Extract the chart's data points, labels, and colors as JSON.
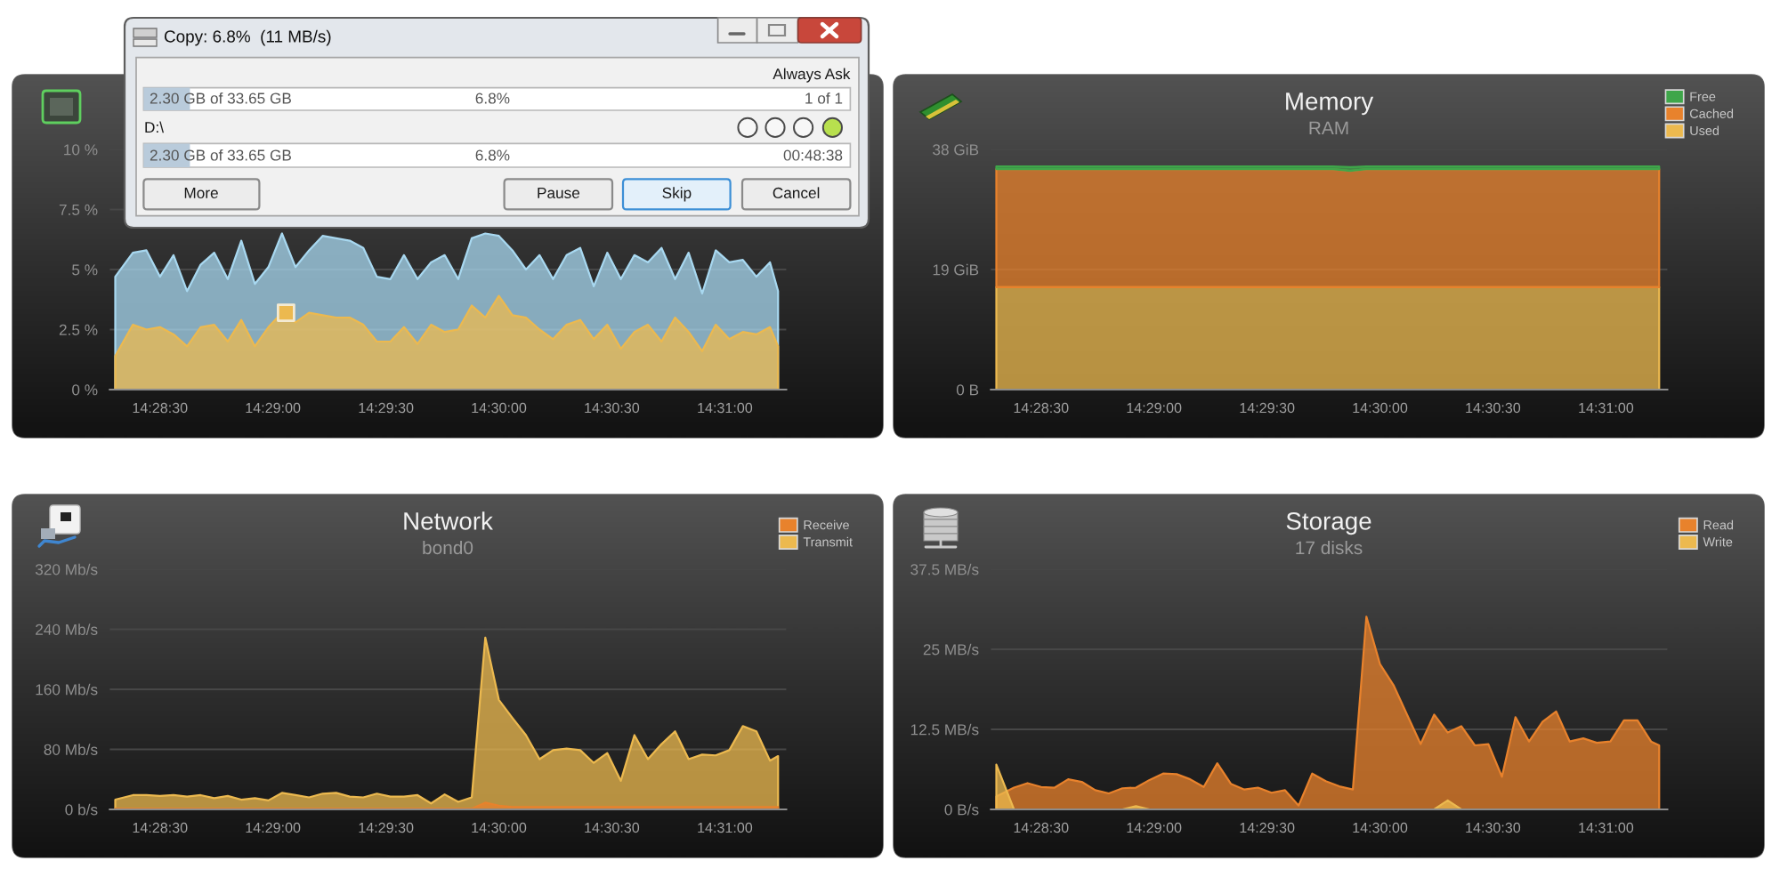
{
  "chart_data": [
    {
      "type": "other",
      "title": "Copy: 6.8%  (11 MB/s)",
      "annotations": [
        "Always Ask",
        "2.30 GB of 33.65 GB",
        "6.8%",
        "1 of 1",
        "D:\\",
        "2.30 GB of 33.65 GB",
        "6.8%",
        "00:48:38",
        "More",
        "Pause",
        "Skip",
        "Cancel"
      ]
    },
    {
      "type": "area",
      "x": [
        14.4717,
        14.473,
        14.474,
        14.475,
        14.476,
        14.477,
        14.478,
        14.479,
        14.48,
        14.481,
        14.482,
        14.483,
        14.484,
        14.485,
        14.486,
        14.487,
        14.488,
        14.489,
        14.49,
        14.491,
        14.492,
        14.493,
        14.494,
        14.495,
        14.496,
        14.497,
        14.498,
        14.499,
        14.5,
        14.501,
        14.502,
        14.503,
        14.504,
        14.505,
        14.506,
        14.507,
        14.508,
        14.509,
        14.51,
        14.511,
        14.512,
        14.513,
        14.514,
        14.515,
        14.516,
        14.517,
        14.518,
        14.519,
        14.52,
        14.5206
      ],
      "xlim": [
        14.4713,
        14.5212
      ],
      "xticks": [
        {
          "value": 14.475,
          "label": "14:28:30"
        },
        {
          "value": 14.48333,
          "label": "14:29:00"
        },
        {
          "value": 14.49167,
          "label": "14:29:30"
        },
        {
          "value": 14.5,
          "label": "14:30:00"
        },
        {
          "value": 14.50833,
          "label": "14:30:30"
        },
        {
          "value": 14.51667,
          "label": "14:31:00"
        }
      ],
      "ylim": [
        0,
        10
      ],
      "yticks": [
        {
          "value": 0,
          "label": "0 %"
        },
        {
          "value": 2.5,
          "label": "2.5 %"
        },
        {
          "value": 5,
          "label": "5 %"
        },
        {
          "value": 7.5,
          "label": "7.5 %"
        },
        {
          "value": 10,
          "label": "10 %"
        }
      ],
      "grid": "y",
      "series": [
        {
          "color": "#a8d8f0",
          "values": [
            4.7,
            5.7,
            5.8,
            4.7,
            5.6,
            4.1,
            5.2,
            5.7,
            4.6,
            6.2,
            4.4,
            5.1,
            6.5,
            5.1,
            5.8,
            6.4,
            6.3,
            6.2,
            5.9,
            4.7,
            4.6,
            5.6,
            4.6,
            5.3,
            5.6,
            4.6,
            6.3,
            6.5,
            6.4,
            5.8,
            5.0,
            5.6,
            4.6,
            5.6,
            5.9,
            4.3,
            5.7,
            4.6,
            5.6,
            5.3,
            5.9,
            4.6,
            5.7,
            4.0,
            5.8,
            5.3,
            5.4,
            4.7,
            5.3,
            4.1
          ]
        },
        {
          "color": "#ecb94f",
          "values": [
            1.4,
            2.7,
            2.5,
            2.6,
            2.3,
            1.8,
            2.6,
            2.7,
            2.0,
            2.9,
            1.8,
            2.6,
            3.2,
            2.8,
            3.2,
            3.1,
            3.0,
            3.0,
            2.7,
            2.0,
            2.0,
            2.6,
            1.9,
            2.7,
            2.4,
            2.5,
            3.5,
            3.0,
            3.9,
            3.1,
            3.0,
            2.5,
            2.1,
            2.7,
            2.9,
            2.1,
            2.7,
            1.7,
            2.4,
            2.7,
            2.0,
            3.0,
            2.4,
            1.6,
            2.7,
            2.1,
            2.4,
            2.3,
            2.6,
            1.8
          ]
        },
        {
          "type": "scatter",
          "marker": "square",
          "color": "#ecb94f",
          "x": [
            14.4843
          ],
          "values": [
            3.2
          ]
        }
      ]
    },
    {
      "type": "area",
      "title": "Memory",
      "subtitle": "RAM",
      "stacked": true,
      "legend": "top right",
      "x": [
        14.4717,
        14.4965,
        14.4978,
        14.499,
        14.5206
      ],
      "xlim": [
        14.4713,
        14.5212
      ],
      "xticks": [
        {
          "value": 14.475,
          "label": "14:28:30"
        },
        {
          "value": 14.48333,
          "label": "14:29:00"
        },
        {
          "value": 14.49167,
          "label": "14:29:30"
        },
        {
          "value": 14.5,
          "label": "14:30:00"
        },
        {
          "value": 14.50833,
          "label": "14:30:30"
        },
        {
          "value": 14.51667,
          "label": "14:31:00"
        }
      ],
      "ylim": [
        0,
        38
      ],
      "yticks": [
        {
          "value": 0,
          "label": "0 B"
        },
        {
          "value": 19,
          "label": "19 GiB"
        },
        {
          "value": 38,
          "label": "38 GiB"
        }
      ],
      "grid": "y",
      "series": [
        {
          "name": "Used",
          "color": "#ecb94f",
          "values": [
            16.2,
            16.2,
            16.2,
            16.2,
            16.2
          ]
        },
        {
          "name": "Cached",
          "color": "#e8822c",
          "values": [
            18.7,
            18.7,
            18.4,
            18.7,
            18.7
          ]
        },
        {
          "name": "Free",
          "color": "#3fa64a",
          "values": [
            0.4,
            0.4,
            0.6,
            0.4,
            0.4
          ]
        }
      ]
    },
    {
      "type": "area",
      "title": "Network",
      "subtitle": "bond0",
      "legend": "top right",
      "x": [
        14.4717,
        14.473,
        14.474,
        14.475,
        14.476,
        14.477,
        14.478,
        14.479,
        14.48,
        14.481,
        14.482,
        14.483,
        14.484,
        14.485,
        14.486,
        14.487,
        14.488,
        14.489,
        14.49,
        14.491,
        14.492,
        14.493,
        14.494,
        14.495,
        14.496,
        14.497,
        14.498,
        14.499,
        14.5,
        14.501,
        14.502,
        14.503,
        14.504,
        14.505,
        14.506,
        14.507,
        14.508,
        14.509,
        14.51,
        14.511,
        14.512,
        14.513,
        14.514,
        14.515,
        14.516,
        14.517,
        14.518,
        14.519,
        14.52,
        14.5206
      ],
      "xlim": [
        14.4713,
        14.5212
      ],
      "xticks": [
        {
          "value": 14.475,
          "label": "14:28:30"
        },
        {
          "value": 14.48333,
          "label": "14:29:00"
        },
        {
          "value": 14.49167,
          "label": "14:29:30"
        },
        {
          "value": 14.5,
          "label": "14:30:00"
        },
        {
          "value": 14.50833,
          "label": "14:30:30"
        },
        {
          "value": 14.51667,
          "label": "14:31:00"
        }
      ],
      "ylim": [
        0,
        320
      ],
      "yticks": [
        {
          "value": 0,
          "label": "0 b/s"
        },
        {
          "value": 80,
          "label": "80 Mb/s"
        },
        {
          "value": 160,
          "label": "160 Mb/s"
        },
        {
          "value": 240,
          "label": "240 Mb/s"
        },
        {
          "value": 320,
          "label": "320 Mb/s"
        }
      ],
      "grid": "y",
      "series": [
        {
          "name": "Receive",
          "color": "#e8822c",
          "values": [
            1,
            1,
            1,
            1,
            1,
            1,
            1,
            1,
            1,
            1,
            1,
            1,
            1,
            1,
            1,
            1,
            1,
            1,
            1,
            1,
            1,
            1,
            1,
            1,
            1,
            1,
            1,
            9,
            5,
            3,
            3,
            3,
            3,
            3,
            3,
            3,
            3,
            3,
            3,
            3,
            3,
            3,
            3,
            3,
            3,
            3,
            3,
            3,
            3,
            3
          ]
        },
        {
          "name": "Transmit",
          "color": "#ecb94f",
          "values": [
            13,
            19,
            19,
            18,
            19,
            17,
            19,
            15,
            18,
            13,
            15,
            12,
            22,
            19,
            16,
            21,
            22,
            17,
            16,
            21,
            17,
            17,
            19,
            8,
            20,
            10,
            16,
            229,
            146,
            122,
            99,
            67,
            79,
            81,
            79,
            62,
            75,
            38,
            99,
            67,
            87,
            104,
            67,
            73,
            72,
            79,
            111,
            104,
            65,
            71
          ]
        }
      ]
    },
    {
      "type": "area",
      "title": "Storage",
      "subtitle": "17 disks",
      "legend": "top right",
      "x": [
        14.4717,
        14.473,
        14.474,
        14.475,
        14.476,
        14.477,
        14.478,
        14.479,
        14.48,
        14.481,
        14.482,
        14.483,
        14.484,
        14.485,
        14.486,
        14.487,
        14.488,
        14.489,
        14.49,
        14.491,
        14.492,
        14.493,
        14.494,
        14.495,
        14.496,
        14.497,
        14.498,
        14.499,
        14.5,
        14.501,
        14.502,
        14.503,
        14.504,
        14.505,
        14.506,
        14.507,
        14.508,
        14.509,
        14.51,
        14.511,
        14.512,
        14.513,
        14.514,
        14.515,
        14.516,
        14.517,
        14.518,
        14.519,
        14.52,
        14.5206
      ],
      "xlim": [
        14.4713,
        14.5212
      ],
      "xticks": [
        {
          "value": 14.475,
          "label": "14:28:30"
        },
        {
          "value": 14.48333,
          "label": "14:29:00"
        },
        {
          "value": 14.49167,
          "label": "14:29:30"
        },
        {
          "value": 14.5,
          "label": "14:30:00"
        },
        {
          "value": 14.50833,
          "label": "14:30:30"
        },
        {
          "value": 14.51667,
          "label": "14:31:00"
        }
      ],
      "ylim": [
        0,
        37.5
      ],
      "yticks": [
        {
          "value": 0,
          "label": "0 B/s"
        },
        {
          "value": 12.5,
          "label": "12.5 MB/s"
        },
        {
          "value": 25,
          "label": "25 MB/s"
        },
        {
          "value": 37.5,
          "label": "37.5 MB/s"
        }
      ],
      "grid": "y",
      "series": [
        {
          "name": "Read",
          "color": "#e8822c",
          "values": [
            2.0,
            3.4,
            4.1,
            3.5,
            3.4,
            4.7,
            4.3,
            3.0,
            2.5,
            3.3,
            3.4,
            4.6,
            5.6,
            5.5,
            4.7,
            3.5,
            7.2,
            4.0,
            3.1,
            3.4,
            2.6,
            3.0,
            0.6,
            5.6,
            4.4,
            3.6,
            3.1,
            30.1,
            22.7,
            19.4,
            14.8,
            10.2,
            14.8,
            12.0,
            13.0,
            10.0,
            10.2,
            5.1,
            14.4,
            10.6,
            13.7,
            15.3,
            10.6,
            11.1,
            10.4,
            10.6,
            13.9,
            13.9,
            10.6,
            10.0
          ]
        },
        {
          "name": "Write",
          "color": "#ecb94f",
          "values": [
            7.0,
            0,
            0,
            0,
            0,
            0,
            0,
            0,
            0,
            0,
            0.5,
            0,
            0,
            0,
            0,
            0,
            0,
            0,
            0,
            0,
            0,
            0,
            0,
            0,
            0,
            0,
            0,
            0,
            0,
            0,
            0,
            0,
            0,
            1.4,
            0,
            0,
            0,
            0,
            0,
            0,
            0,
            0,
            0,
            0,
            0,
            0,
            0,
            0,
            0,
            0
          ]
        }
      ]
    }
  ]
}
